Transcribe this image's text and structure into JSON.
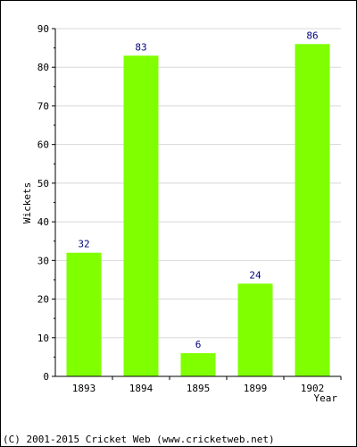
{
  "chart_data": {
    "type": "bar",
    "title": "",
    "xlabel": "Year",
    "ylabel": "Wickets",
    "categories": [
      "1893",
      "1894",
      "1895",
      "1899",
      "1902"
    ],
    "values": [
      32,
      83,
      6,
      24,
      86
    ],
    "ylim": [
      0,
      90
    ],
    "yticks": [
      0,
      10,
      20,
      30,
      40,
      50,
      60,
      70,
      80,
      90
    ],
    "grid": true,
    "bar_color": "#7fff00",
    "data_label_color": "#000080",
    "grid_color": "#d8d8d8"
  },
  "footer": {
    "copyright": "(C) 2001-2015 Cricket Web (www.cricketweb.net)"
  }
}
